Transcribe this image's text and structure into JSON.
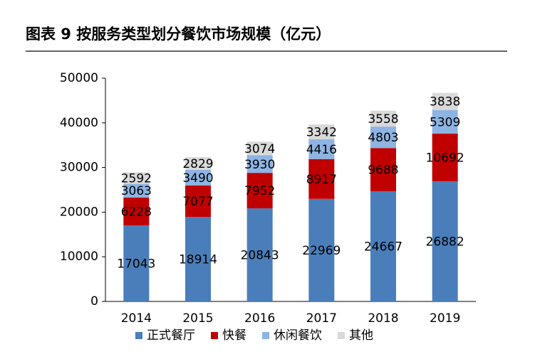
{
  "chart_data": {
    "type": "stacked_bar",
    "title": "图表 9 按服务类型划分餐饮市场规模（亿元）",
    "categories": [
      "2014",
      "2015",
      "2016",
      "2017",
      "2018",
      "2019"
    ],
    "series": [
      {
        "name": "正式餐厅",
        "color": "#4a7ebb",
        "values": [
          17043,
          18914,
          20843,
          22969,
          24667,
          26882
        ]
      },
      {
        "name": "快餐",
        "color": "#c00000",
        "values": [
          6228,
          7077,
          7952,
          8917,
          9688,
          10692
        ]
      },
      {
        "name": "休闲餐饮",
        "color": "#8db4e2",
        "values": [
          3063,
          3490,
          3930,
          4416,
          4803,
          5309
        ]
      },
      {
        "name": "其他",
        "color": "#d9d9d9",
        "values": [
          2592,
          2829,
          3074,
          3342,
          3558,
          3838
        ]
      }
    ],
    "ylim": [
      0,
      50000
    ],
    "yticks": [
      0,
      10000,
      20000,
      30000,
      40000,
      50000
    ],
    "legend": "bottom",
    "grid": false
  }
}
